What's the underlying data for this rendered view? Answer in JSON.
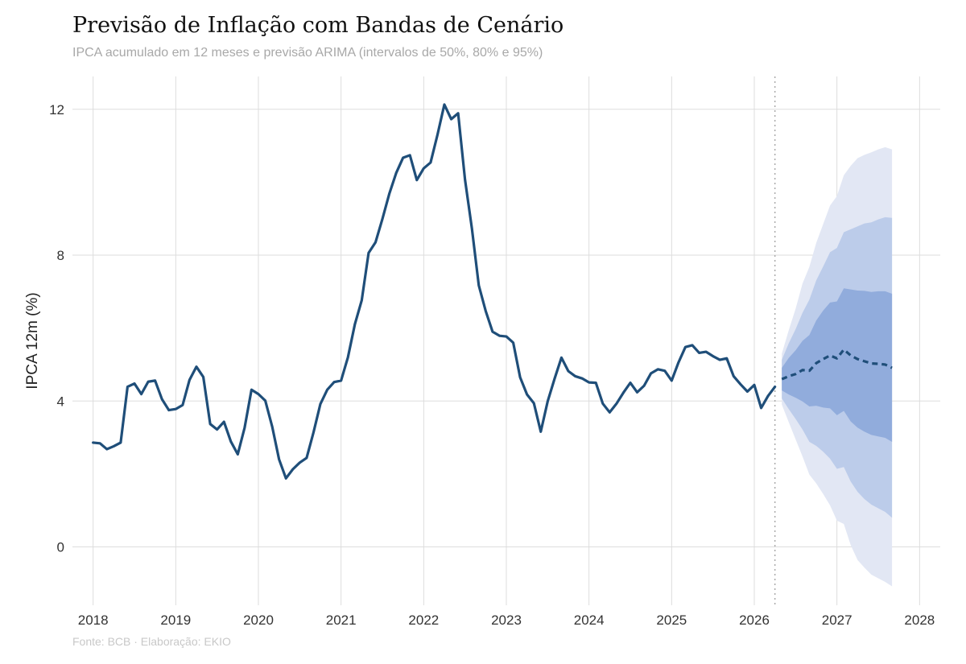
{
  "header": {
    "title": "Previsão de Inflação com Bandas de Cenário",
    "subtitle": "IPCA acumulado em 12 meses e previsão ARIMA (intervalos de 50%, 80% e 95%)"
  },
  "footer": {
    "caption": "Fonte: BCB · Elaboração: EKIO"
  },
  "chart_data": {
    "type": "line",
    "title": "Previsão de Inflação com Bandas de Cenário",
    "subtitle": "IPCA acumulado em 12 meses e previsão ARIMA (intervalos de 50%, 80% e 95%)",
    "xlabel": "",
    "ylabel": "IPCA 12m (%)",
    "xlim": [
      2017.75,
      2028.25
    ],
    "ylim": [
      -1.6,
      12.9
    ],
    "x_ticks": [
      2018,
      2019,
      2020,
      2021,
      2022,
      2023,
      2024,
      2025,
      2026,
      2027,
      2028
    ],
    "y_ticks": [
      0,
      4,
      8,
      12
    ],
    "grid": true,
    "legend": "none",
    "forecast_start_marker": 2026.25,
    "colors": {
      "history": "#1f4e79",
      "forecast": "#1f4e79",
      "band95": "#e2e7f4",
      "band80": "#bcccea",
      "band50": "#91acdc",
      "grid": "#dddddd",
      "marker_line": "#aaaaaa"
    },
    "history": {
      "start": "2018-01",
      "values": [
        2.86,
        2.84,
        2.68,
        2.76,
        2.86,
        4.39,
        4.48,
        4.19,
        4.53,
        4.56,
        4.05,
        3.75,
        3.78,
        3.89,
        4.58,
        4.94,
        4.66,
        3.37,
        3.22,
        3.43,
        2.89,
        2.54,
        3.27,
        4.31,
        4.19,
        4.01,
        3.3,
        2.4,
        1.88,
        2.13,
        2.31,
        2.44,
        3.14,
        3.92,
        4.31,
        4.52,
        4.56,
        5.2,
        6.1,
        6.76,
        8.06,
        8.35,
        8.99,
        9.68,
        10.25,
        10.67,
        10.74,
        10.06,
        10.38,
        10.54,
        11.3,
        12.13,
        11.73,
        11.89,
        10.07,
        8.73,
        7.17,
        6.47,
        5.9,
        5.79,
        5.77,
        5.6,
        4.65,
        4.18,
        3.94,
        3.16,
        3.99,
        4.61,
        5.19,
        4.82,
        4.68,
        4.62,
        4.51,
        4.5,
        3.93,
        3.69,
        3.93,
        4.23,
        4.5,
        4.24,
        4.42,
        4.76,
        4.87,
        4.83,
        4.56,
        5.06,
        5.48,
        5.53,
        5.32,
        5.35,
        5.23,
        5.13,
        5.17,
        4.68,
        4.46,
        4.26,
        4.44,
        3.81,
        4.14,
        4.39
      ]
    },
    "forecast": {
      "start": "2026-05",
      "mean": [
        4.6,
        4.68,
        4.74,
        4.85,
        4.83,
        5.04,
        5.15,
        5.25,
        5.17,
        5.41,
        5.25,
        5.15,
        5.09,
        5.03,
        5.02,
        5.0,
        4.91
      ],
      "band50": {
        "lower": [
          4.29,
          4.18,
          4.09,
          3.99,
          3.85,
          3.87,
          3.82,
          3.8,
          3.61,
          3.73,
          3.44,
          3.27,
          3.16,
          3.07,
          3.03,
          2.99,
          2.88
        ],
        "upper": [
          4.91,
          5.18,
          5.39,
          5.65,
          5.81,
          6.21,
          6.48,
          6.7,
          6.73,
          7.09,
          7.06,
          7.03,
          7.02,
          6.99,
          7.01,
          7.01,
          6.94
        ]
      },
      "band80": {
        "lower": [
          4.07,
          3.78,
          3.51,
          3.22,
          2.88,
          2.77,
          2.61,
          2.42,
          2.14,
          2.19,
          1.79,
          1.51,
          1.31,
          1.16,
          1.06,
          0.96,
          0.8
        ],
        "upper": [
          5.13,
          5.58,
          5.97,
          6.42,
          6.78,
          7.31,
          7.69,
          8.08,
          8.2,
          8.63,
          8.71,
          8.79,
          8.87,
          8.9,
          8.98,
          9.04,
          9.02
        ]
      },
      "band95": {
        "lower": [
          3.9,
          3.42,
          2.95,
          2.48,
          1.98,
          1.74,
          1.45,
          1.14,
          0.72,
          0.63,
          0.05,
          -0.36,
          -0.57,
          -0.76,
          -0.86,
          -0.96,
          -1.08
        ],
        "upper": [
          5.3,
          5.94,
          6.53,
          7.22,
          7.68,
          8.34,
          8.85,
          9.36,
          9.62,
          10.19,
          10.45,
          10.66,
          10.75,
          10.82,
          10.9,
          10.96,
          10.9
        ]
      }
    }
  }
}
